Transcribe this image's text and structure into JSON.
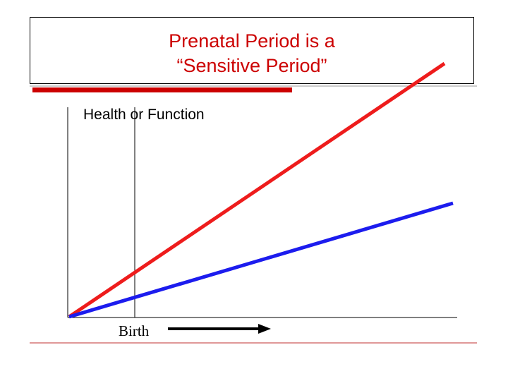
{
  "title": {
    "line1": "Prenatal Period is a",
    "line2": "“Sensitive Period”",
    "color": "#cc0000"
  },
  "axis": {
    "ylabel": "Health or Function"
  },
  "marker": {
    "label": "Birth"
  },
  "lines": [
    {
      "name": "red-line",
      "color": "#ee1c1c"
    },
    {
      "name": "blue-line",
      "color": "#1c1cee"
    }
  ],
  "accent": {
    "underline_color": "#cc0000",
    "footer_rule_color": "#c03030"
  }
}
